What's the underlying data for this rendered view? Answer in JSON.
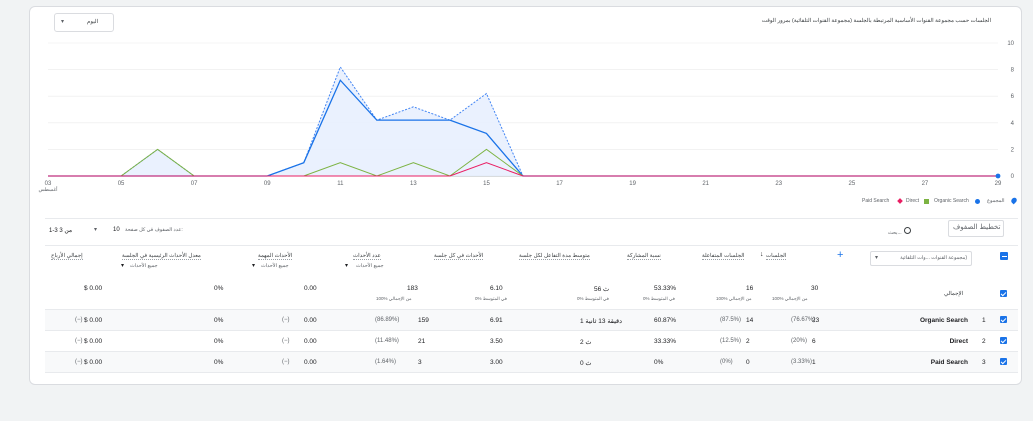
{
  "chart": {
    "title": "الجلسات حسب مجموعة القنوات الأساسية المرتبطة بالجلسة (مجموعة القنوات التلقائية) بمرور الوقت",
    "period_selector": "اليوم",
    "y_ticks": [
      "10",
      "8",
      "6",
      "4",
      "2",
      "0"
    ],
    "x_ticks": [
      "03",
      "05",
      "07",
      "09",
      "11",
      "13",
      "15",
      "17",
      "19",
      "21",
      "23",
      "25",
      "27",
      "29"
    ],
    "x_sub_label": "أغسطس",
    "legend": {
      "total": "المجموع",
      "organic": "Organic Search",
      "direct": "Direct",
      "paid": "Paid Search"
    }
  },
  "chart_data": {
    "type": "line",
    "x": [
      "03",
      "04",
      "05",
      "06",
      "07",
      "08",
      "09",
      "10",
      "11",
      "12",
      "13",
      "14",
      "15",
      "16",
      "17",
      "18",
      "19",
      "20",
      "21",
      "22",
      "23",
      "24",
      "25",
      "26",
      "27",
      "28",
      "29"
    ],
    "series": [
      {
        "name": "المجموع",
        "values": [
          0,
          0,
          0,
          2,
          0,
          0,
          0,
          1,
          8.2,
          4.2,
          5.2,
          4.2,
          6.2,
          0,
          0,
          0,
          0,
          0,
          0,
          0,
          0,
          0,
          0,
          0,
          0,
          0,
          0
        ]
      },
      {
        "name": "Organic Search",
        "values": [
          0,
          0,
          0,
          0,
          0,
          0,
          0,
          1,
          7.2,
          4.2,
          4.2,
          4.2,
          3.2,
          0,
          0,
          0,
          0,
          0,
          0,
          0,
          0,
          0,
          0,
          0,
          0,
          0,
          0
        ]
      },
      {
        "name": "Direct",
        "values": [
          0,
          0,
          0,
          2,
          0,
          0,
          0,
          0,
          1,
          0,
          1,
          0,
          2,
          0,
          0,
          0,
          0,
          0,
          0,
          0,
          0,
          0,
          0,
          0,
          0,
          0,
          0
        ]
      },
      {
        "name": "Paid Search",
        "values": [
          0,
          0,
          0,
          0,
          0,
          0,
          0,
          0,
          0,
          0,
          0,
          0,
          1,
          0,
          0,
          0,
          0,
          0,
          0,
          0,
          0,
          0,
          0,
          0,
          0,
          0,
          0
        ]
      }
    ],
    "ylim": [
      0,
      10
    ],
    "colors": {
      "total": "#4285f4",
      "organic": "#1a73e8",
      "direct": "#7cb342",
      "paid": "#e91e63"
    }
  },
  "toolbar": {
    "search_placeholder": "بحث...",
    "plot_rows_btn": "تخطيط الصفوف",
    "rows_per_page_label": "عدد الصفوف في كل صفحة:",
    "rows_per_page_value": "10",
    "range": "1-3 من 3"
  },
  "table": {
    "dimension_dropdown": "مجموعة القنوات ...وات التلقائية)",
    "headers": {
      "sessions": "الجلسات",
      "engaged": "الجلسات المتفاعلة",
      "engagement_rate": "نسبة المشاركة",
      "avg_engagement": "متوسط مدة التفاعل لكل جلسة",
      "events_per_session": "الأحداث في كل جلسة",
      "event_count": "عدد الأحداث",
      "event_count_sub": "جميع الأحداث",
      "key_events": "الأحداث المهمة",
      "key_events_sub": "جميع الأحداث",
      "session_key_rate": "معدل الأحداث الرئيسية في الجلسة",
      "session_key_rate_sub": "جميع الأحداث",
      "revenue": "إجمالي الأرباح"
    },
    "total": {
      "label": "الإجمالي",
      "sessions": "30",
      "sessions_sub": "100% من الإجمالي",
      "engaged": "16",
      "engaged_sub": "100% من الإجمالي",
      "engagement_rate": "53.33%",
      "engagement_rate_sub": "0% في المتوسط",
      "avg_engagement": "56 ث",
      "avg_engagement_sub": "0% في المتوسط",
      "events_per_session": "6.10",
      "events_per_session_sub": "0% في المتوسط",
      "event_count": "183",
      "event_count_sub": "100% من الإجمالي",
      "key_events": "0.00",
      "session_key_rate": "0%",
      "revenue": "$ 0.00"
    },
    "rows": [
      {
        "idx": "1",
        "name": "Organic Search",
        "sessions": "23",
        "sessions_pct": "(76.67%)",
        "engaged": "14",
        "engaged_pct": "(87.5%)",
        "engagement_rate": "60.87%",
        "avg_engagement": "1 دقيقة 13 ثانية",
        "events_per_session": "6.91",
        "event_count": "159",
        "event_count_pct": "(86.89%)",
        "key_events": "0.00",
        "key_events_pct": "(−)",
        "session_key_rate": "0%",
        "revenue": "$ 0.00",
        "revenue_pct": "(−)"
      },
      {
        "idx": "2",
        "name": "Direct",
        "sessions": "6",
        "sessions_pct": "(20%)",
        "engaged": "2",
        "engaged_pct": "(12.5%)",
        "engagement_rate": "33.33%",
        "avg_engagement": "2 ث",
        "events_per_session": "3.50",
        "event_count": "21",
        "event_count_pct": "(11.48%)",
        "key_events": "0.00",
        "key_events_pct": "(−)",
        "session_key_rate": "0%",
        "revenue": "$ 0.00",
        "revenue_pct": "(−)"
      },
      {
        "idx": "3",
        "name": "Paid Search",
        "sessions": "1",
        "sessions_pct": "(3.33%)",
        "engaged": "0",
        "engaged_pct": "(0%)",
        "engagement_rate": "0%",
        "avg_engagement": "0 ث",
        "events_per_session": "3.00",
        "event_count": "3",
        "event_count_pct": "(1.64%)",
        "key_events": "0.00",
        "key_events_pct": "(−)",
        "session_key_rate": "0%",
        "revenue": "$ 0.00",
        "revenue_pct": "(−)"
      }
    ]
  }
}
